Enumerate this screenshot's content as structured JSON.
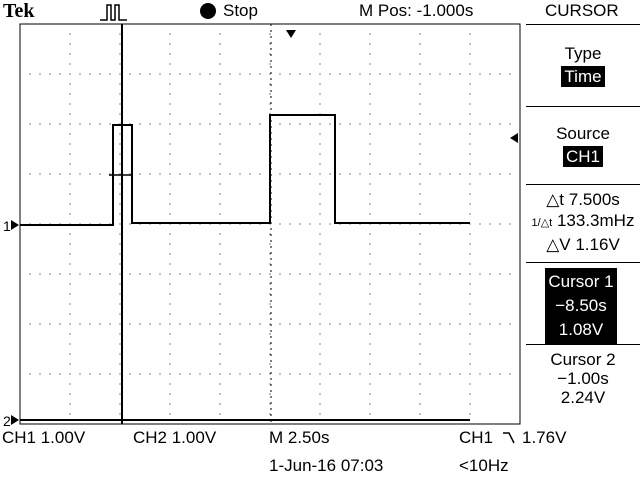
{
  "header": {
    "brand": "Tek",
    "trigger_icon": "pulse-trigger-icon",
    "run_state": "Stop",
    "m_pos": "M Pos: -1.000s",
    "menu_title": "CURSOR"
  },
  "side_menu": {
    "type_label": "Type",
    "type_value": "Time",
    "source_label": "Source",
    "source_value": "CH1",
    "delta_t": "△t 7.500s",
    "inv_delta_t": "133.3mHz",
    "inv_delta_t_prefix": "1/△t",
    "delta_v": "△V 1.16V",
    "cursor1": {
      "label": "Cursor 1",
      "time": "−8.50s",
      "volts": "1.08V"
    },
    "cursor2": {
      "label": "Cursor 2",
      "time": "−1.00s",
      "volts": "2.24V"
    }
  },
  "footer": {
    "ch1": "CH1  1.00V",
    "ch2": "CH2  1.00V",
    "timebase": "M 2.50s",
    "trigger_source": "CH1",
    "trigger_level": "1.76V",
    "date": "1-Jun-16 07:03",
    "freq": "<10Hz"
  },
  "markers": {
    "ch1_marker": "1",
    "ch2_marker": "2"
  },
  "colors": {
    "trace": "#000000",
    "background": "#ffffff"
  }
}
